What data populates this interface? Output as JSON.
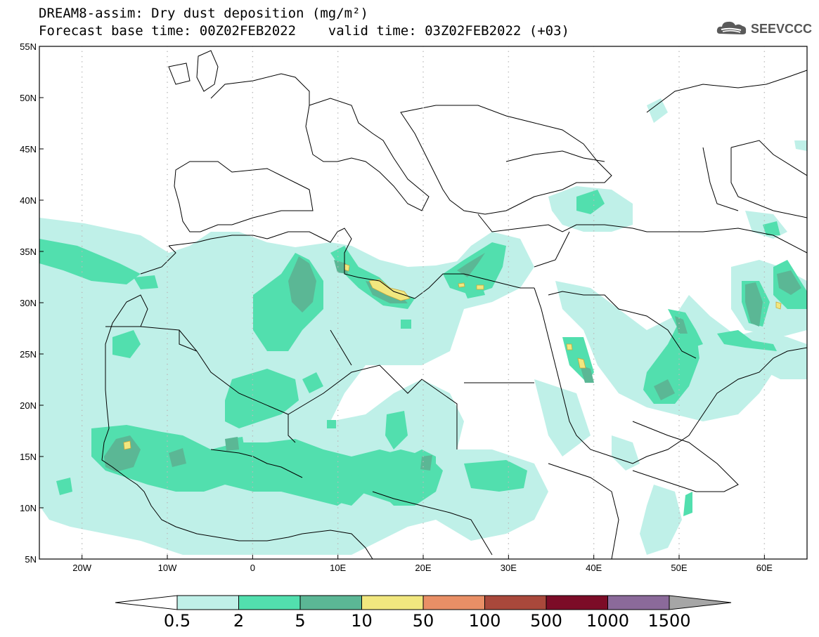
{
  "header": {
    "title_line1": "DREAM8-assim: Dry dust deposition (mg/m²)",
    "title_line2": "Forecast base time: 00Z02FEB2022    valid time: 03Z02FEB2022 (+03)",
    "logo_text": "SEEVCCC"
  },
  "map": {
    "projection": "lat-lon",
    "lon_range": [
      -25,
      65
    ],
    "lat_range": [
      5,
      55
    ],
    "lon_ticks": [
      {
        "value": -20,
        "label": "20W"
      },
      {
        "value": -10,
        "label": "10W"
      },
      {
        "value": 0,
        "label": "0"
      },
      {
        "value": 10,
        "label": "10E"
      },
      {
        "value": 20,
        "label": "20E"
      },
      {
        "value": 30,
        "label": "30E"
      },
      {
        "value": 40,
        "label": "40E"
      },
      {
        "value": 50,
        "label": "50E"
      },
      {
        "value": 60,
        "label": "60E"
      }
    ],
    "lat_ticks": [
      {
        "value": 55,
        "label": "55N"
      },
      {
        "value": 50,
        "label": "50N"
      },
      {
        "value": 45,
        "label": "45N"
      },
      {
        "value": 40,
        "label": "40N"
      },
      {
        "value": 35,
        "label": "35N"
      },
      {
        "value": 30,
        "label": "30N"
      },
      {
        "value": 25,
        "label": "25N"
      },
      {
        "value": 20,
        "label": "20N"
      },
      {
        "value": 15,
        "label": "15N"
      },
      {
        "value": 10,
        "label": "10N"
      },
      {
        "value": 5,
        "label": "5N"
      }
    ]
  },
  "colorbar": {
    "under_color": "#ffffff",
    "over_color": "#a6a6a6",
    "bins": [
      {
        "color": "#bff0e8"
      },
      {
        "color": "#52dfae"
      },
      {
        "color": "#5bb795"
      },
      {
        "color": "#f1e77f"
      },
      {
        "color": "#e98f66"
      },
      {
        "color": "#a9483b"
      },
      {
        "color": "#7c0c27"
      },
      {
        "color": "#8b6a9a"
      }
    ],
    "labels": [
      "0.5",
      "2",
      "5",
      "10",
      "50",
      "100",
      "500",
      "1000",
      "1500"
    ]
  },
  "colors": {
    "level1": "#bff0e8",
    "level2": "#52dfae",
    "level3": "#5bb795",
    "level4": "#f1e77f"
  }
}
